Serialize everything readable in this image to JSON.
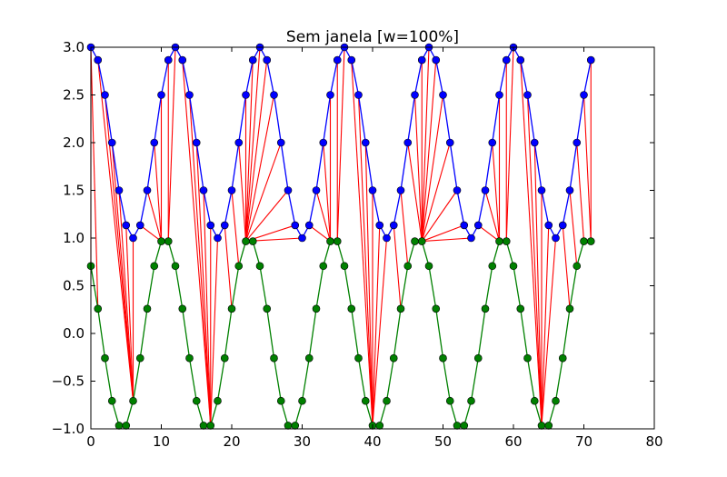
{
  "chart_data": {
    "type": "line",
    "title": "Sem janela [w=100%]",
    "xlabel": "",
    "ylabel": "",
    "xlim": [
      0,
      80
    ],
    "ylim": [
      -1.0,
      3.0
    ],
    "xticks": [
      0,
      10,
      20,
      30,
      40,
      50,
      60,
      70,
      80
    ],
    "xtick_labels": [
      "0",
      "10",
      "20",
      "30",
      "40",
      "50",
      "60",
      "70",
      "80"
    ],
    "yticks": [
      -1.0,
      -0.5,
      0.0,
      0.5,
      1.0,
      1.5,
      2.0,
      2.5,
      3.0
    ],
    "ytick_labels": [
      "−1.0",
      "−0.5",
      "0.0",
      "0.5",
      "1.0",
      "1.5",
      "2.0",
      "2.5",
      "3.0"
    ],
    "grid": false,
    "x": [
      0,
      1,
      2,
      3,
      4,
      5,
      6,
      7,
      8,
      9,
      10,
      11,
      12,
      13,
      14,
      15,
      16,
      17,
      18,
      19,
      20,
      21,
      22,
      23,
      24,
      25,
      26,
      27,
      28,
      29,
      30,
      31,
      32,
      33,
      34,
      35,
      36,
      37,
      38,
      39,
      40,
      41,
      42,
      43,
      44,
      45,
      46,
      47,
      48,
      49,
      50,
      51,
      52,
      53,
      54,
      55,
      56,
      57,
      58,
      59,
      60,
      61,
      62,
      63,
      64,
      65,
      66,
      67,
      68,
      69,
      70,
      71
    ],
    "series": [
      {
        "color": "#0000ff",
        "marker_color": "#0000cc",
        "values": [
          3.0,
          2.866,
          2.5,
          2.0,
          1.5,
          1.134,
          1.0,
          1.134,
          1.5,
          2.0,
          2.5,
          2.866,
          3.0,
          2.866,
          2.5,
          2.0,
          1.5,
          1.134,
          1.0,
          1.134,
          1.5,
          2.0,
          2.5,
          2.866,
          3.0,
          2.866,
          2.5,
          2.0,
          1.5,
          1.134,
          1.0,
          1.134,
          1.5,
          2.0,
          2.5,
          2.866,
          3.0,
          2.866,
          2.5,
          2.0,
          1.5,
          1.134,
          1.0,
          1.134,
          1.5,
          2.0,
          2.5,
          2.866,
          3.0,
          2.866,
          2.5,
          2.0,
          1.5,
          1.134,
          1.0,
          1.134,
          1.5,
          2.0,
          2.5,
          2.866,
          3.0,
          2.866,
          2.5,
          2.0,
          1.5,
          1.134,
          1.0,
          1.134,
          1.5,
          2.0,
          2.5,
          2.866
        ]
      },
      {
        "color": "#008000",
        "marker_color": "#006400",
        "values": [
          0.707,
          0.259,
          -0.259,
          -0.707,
          -0.966,
          -0.966,
          -0.707,
          -0.259,
          0.259,
          0.707,
          0.966,
          0.966,
          0.707,
          0.259,
          -0.259,
          -0.707,
          -0.966,
          -0.966,
          -0.707,
          -0.259,
          0.259,
          0.707,
          0.966,
          0.966,
          0.707,
          0.259,
          -0.259,
          -0.707,
          -0.966,
          -0.966,
          -0.707,
          -0.259,
          0.259,
          0.707,
          0.966,
          0.966,
          0.707,
          0.259,
          -0.259,
          -0.707,
          -0.966,
          -0.966,
          -0.707,
          -0.259,
          0.259,
          0.707,
          0.966,
          0.966,
          0.707,
          0.259,
          -0.259,
          -0.707,
          -0.966,
          -0.966,
          -0.707,
          -0.259,
          0.259,
          0.707,
          0.966,
          0.966,
          0.707,
          0.259,
          -0.259,
          -0.707,
          -0.966,
          -0.966,
          -0.707,
          -0.259,
          0.259,
          0.707,
          0.966,
          0.966
        ]
      }
    ],
    "connections": {
      "color": "#ff0000",
      "pairs": [
        [
          0,
          0
        ],
        [
          0,
          1
        ],
        [
          1,
          6
        ],
        [
          2,
          6
        ],
        [
          3,
          6
        ],
        [
          4,
          6
        ],
        [
          5,
          6
        ],
        [
          6,
          6
        ],
        [
          7,
          10
        ],
        [
          8,
          10
        ],
        [
          9,
          10
        ],
        [
          10,
          10
        ],
        [
          11,
          11
        ],
        [
          12,
          11
        ],
        [
          13,
          17
        ],
        [
          14,
          17
        ],
        [
          15,
          17
        ],
        [
          16,
          17
        ],
        [
          17,
          17
        ],
        [
          18,
          17
        ],
        [
          19,
          20
        ],
        [
          20,
          21
        ],
        [
          21,
          22
        ],
        [
          22,
          22
        ],
        [
          23,
          22
        ],
        [
          24,
          22
        ],
        [
          25,
          22
        ],
        [
          26,
          22
        ],
        [
          27,
          22
        ],
        [
          28,
          22
        ],
        [
          29,
          22
        ],
        [
          30,
          22
        ],
        [
          31,
          34
        ],
        [
          32,
          34
        ],
        [
          33,
          34
        ],
        [
          34,
          34
        ],
        [
          35,
          35
        ],
        [
          36,
          35
        ],
        [
          37,
          40
        ],
        [
          38,
          40
        ],
        [
          39,
          40
        ],
        [
          40,
          40
        ],
        [
          41,
          40
        ],
        [
          42,
          40
        ],
        [
          43,
          44
        ],
        [
          44,
          45
        ],
        [
          45,
          47
        ],
        [
          46,
          47
        ],
        [
          47,
          47
        ],
        [
          48,
          47
        ],
        [
          49,
          47
        ],
        [
          50,
          47
        ],
        [
          51,
          47
        ],
        [
          52,
          47
        ],
        [
          53,
          47
        ],
        [
          54,
          47
        ],
        [
          55,
          58
        ],
        [
          56,
          58
        ],
        [
          57,
          58
        ],
        [
          58,
          58
        ],
        [
          59,
          59
        ],
        [
          60,
          59
        ],
        [
          61,
          64
        ],
        [
          62,
          64
        ],
        [
          63,
          64
        ],
        [
          64,
          64
        ],
        [
          65,
          64
        ],
        [
          66,
          64
        ],
        [
          67,
          68
        ],
        [
          68,
          69
        ],
        [
          69,
          70
        ],
        [
          70,
          71
        ],
        [
          71,
          71
        ]
      ]
    }
  }
}
